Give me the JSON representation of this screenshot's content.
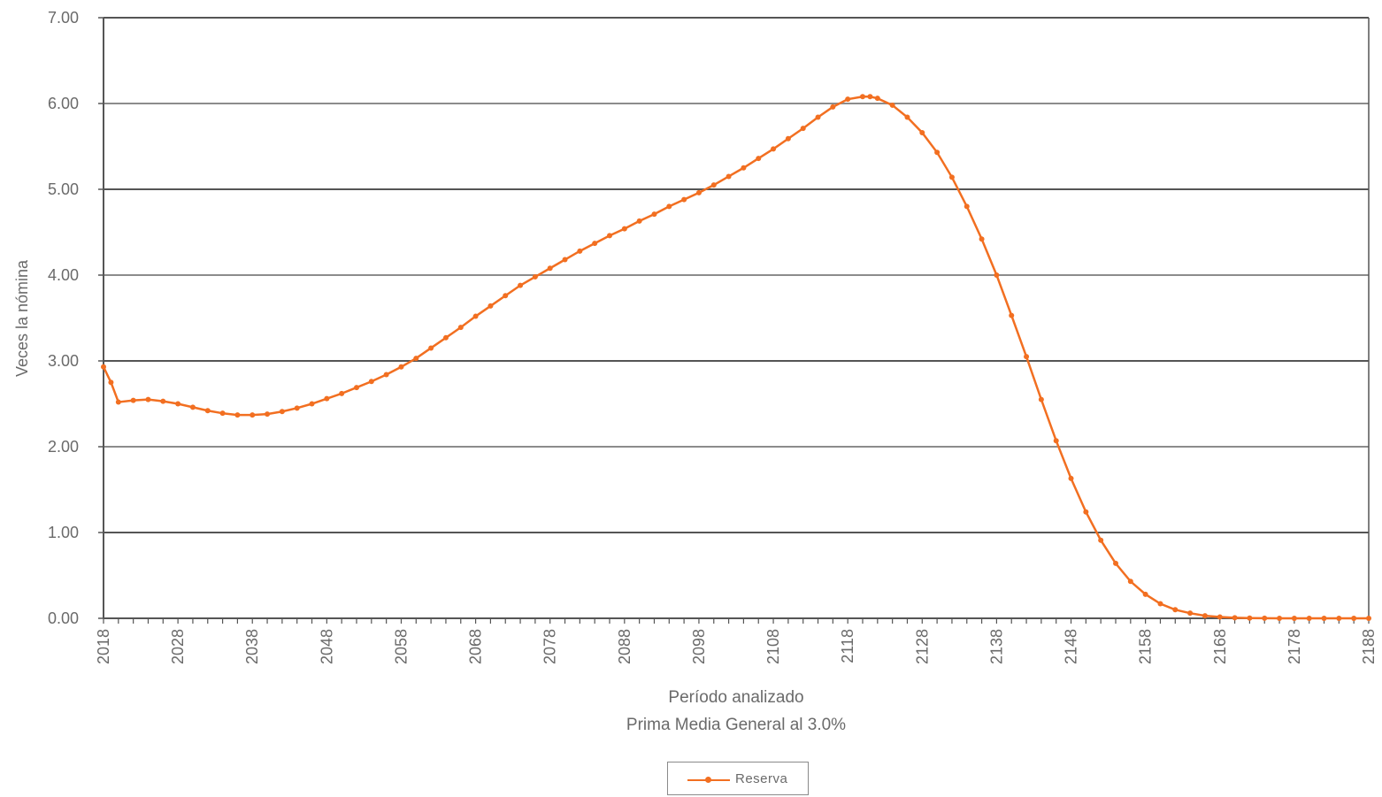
{
  "chart_data": {
    "type": "line",
    "title": "",
    "xlabel": "Período analizado",
    "subtitle": "Prima Media General al 3.0%",
    "ylabel": "Veces la nómina",
    "xlim": [
      2018,
      2188
    ],
    "ylim": [
      0,
      7
    ],
    "x_ticks": [
      "2018",
      "2028",
      "2038",
      "2048",
      "2058",
      "2068",
      "2078",
      "2088",
      "2098",
      "2108",
      "2118",
      "2128",
      "2138",
      "2148",
      "2158",
      "2168",
      "2178",
      "2188"
    ],
    "y_ticks": [
      "0.00",
      "1.00",
      "2.00",
      "3.00",
      "4.00",
      "5.00",
      "6.00",
      "7.00"
    ],
    "grid": true,
    "legend_position": "bottom-center",
    "color": "#f26f21",
    "series": [
      {
        "name": "Reserva",
        "x": [
          2018,
          2019,
          2020,
          2022,
          2024,
          2026,
          2028,
          2030,
          2032,
          2034,
          2036,
          2038,
          2040,
          2042,
          2044,
          2046,
          2048,
          2050,
          2052,
          2054,
          2056,
          2058,
          2060,
          2062,
          2064,
          2066,
          2068,
          2070,
          2072,
          2074,
          2076,
          2078,
          2080,
          2082,
          2084,
          2086,
          2088,
          2090,
          2092,
          2094,
          2096,
          2098,
          2100,
          2102,
          2104,
          2106,
          2108,
          2110,
          2112,
          2114,
          2116,
          2118,
          2120,
          2121,
          2122,
          2124,
          2126,
          2128,
          2130,
          2132,
          2134,
          2136,
          2138,
          2140,
          2142,
          2144,
          2146,
          2148,
          2150,
          2152,
          2154,
          2156,
          2158,
          2160,
          2162,
          2164,
          2166,
          2168,
          2170,
          2172,
          2174,
          2176,
          2178,
          2180,
          2182,
          2184,
          2186,
          2188
        ],
        "y": [
          2.93,
          2.75,
          2.52,
          2.54,
          2.55,
          2.53,
          2.5,
          2.46,
          2.42,
          2.39,
          2.37,
          2.37,
          2.38,
          2.41,
          2.45,
          2.5,
          2.56,
          2.62,
          2.69,
          2.76,
          2.84,
          2.93,
          3.03,
          3.15,
          3.27,
          3.39,
          3.52,
          3.64,
          3.76,
          3.88,
          3.98,
          4.08,
          4.18,
          4.28,
          4.37,
          4.46,
          4.54,
          4.63,
          4.71,
          4.8,
          4.88,
          4.96,
          5.05,
          5.15,
          5.25,
          5.36,
          5.47,
          5.59,
          5.71,
          5.84,
          5.96,
          6.05,
          6.08,
          6.08,
          6.06,
          5.98,
          5.84,
          5.66,
          5.43,
          5.14,
          4.8,
          4.42,
          4.0,
          3.53,
          3.05,
          2.55,
          2.07,
          1.63,
          1.24,
          0.91,
          0.64,
          0.43,
          0.28,
          0.17,
          0.1,
          0.06,
          0.03,
          0.015,
          0.007,
          0.003,
          0.001,
          0.0,
          0.0,
          0.0,
          0.0,
          0.0,
          0.0,
          0.0
        ]
      }
    ]
  }
}
